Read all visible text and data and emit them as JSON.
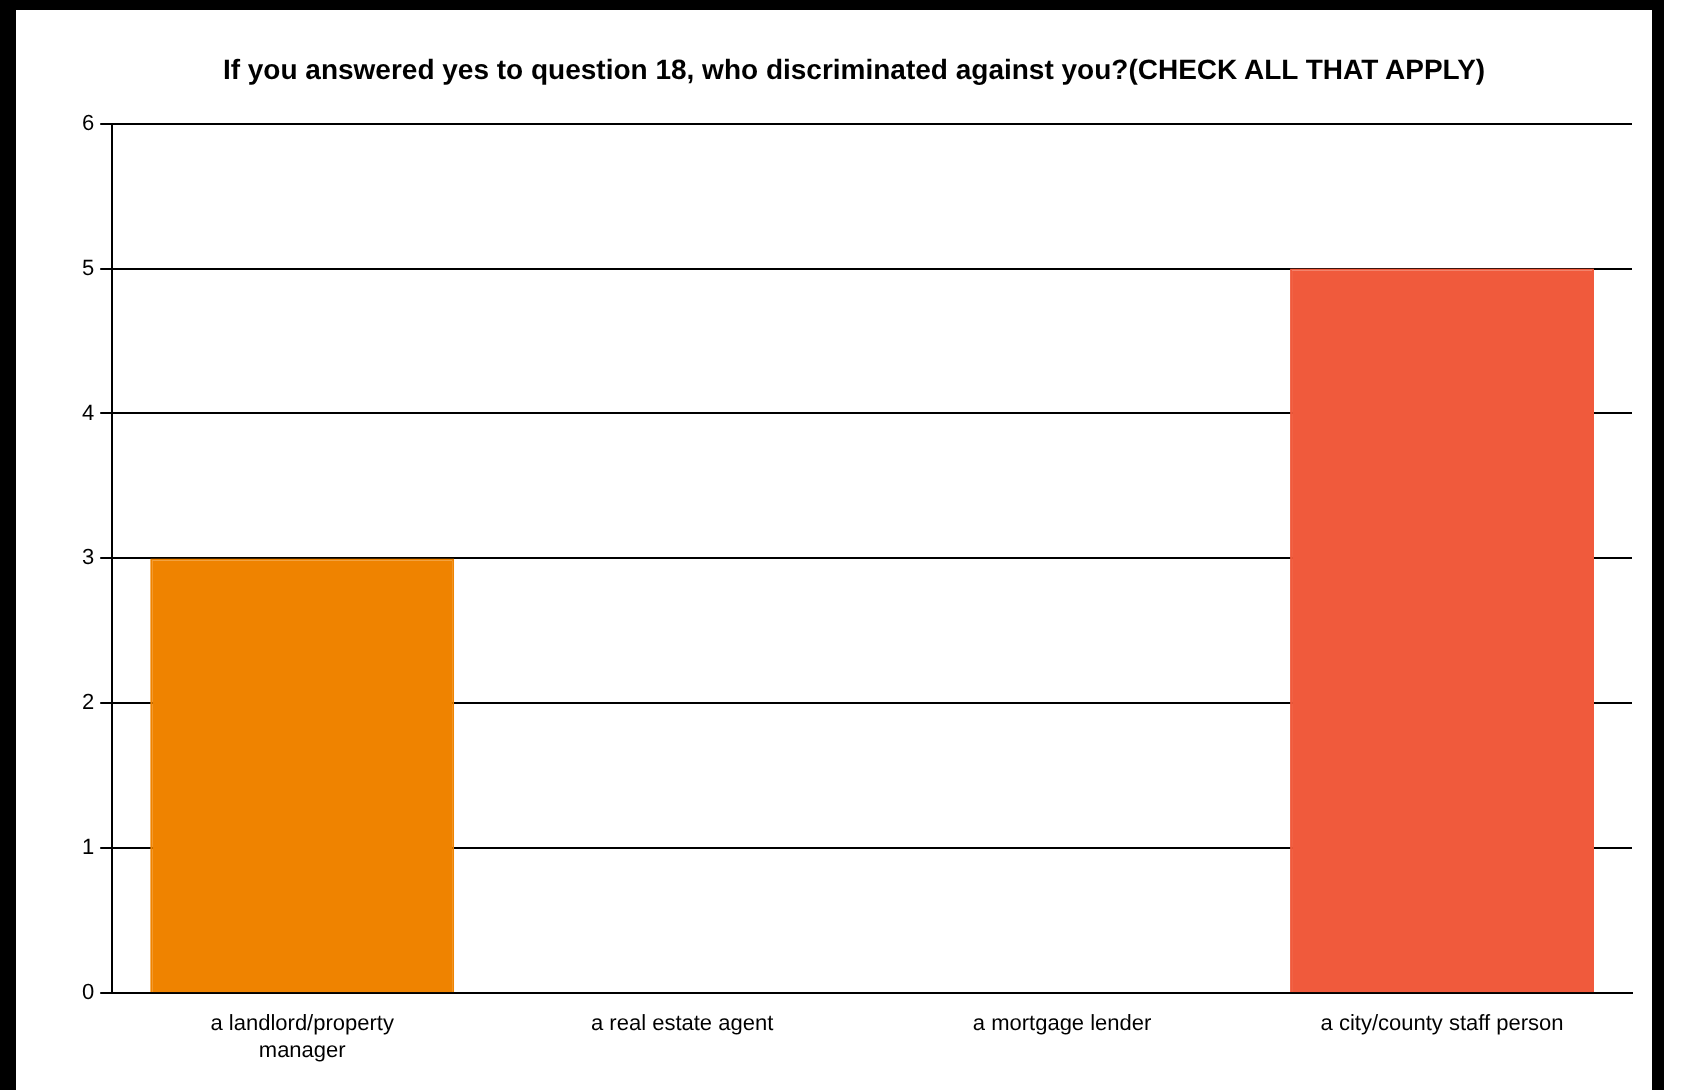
{
  "chart_data": {
    "type": "bar",
    "title": "If you answered yes to question 18, who discriminated against you?(CHECK ALL THAT APPLY)",
    "categories": [
      "a landlord/property manager",
      "a real estate agent",
      "a mortgage lender",
      "a city/county staff person"
    ],
    "values": [
      3,
      0,
      0,
      5
    ],
    "colors": [
      "#ef8300",
      "#b0b0b0",
      "#b0b0b0",
      "#f05a3c"
    ],
    "ylim": [
      0,
      6
    ],
    "yticks": [
      0,
      1,
      2,
      3,
      4,
      5,
      6
    ],
    "grid": "y",
    "legend": false
  }
}
